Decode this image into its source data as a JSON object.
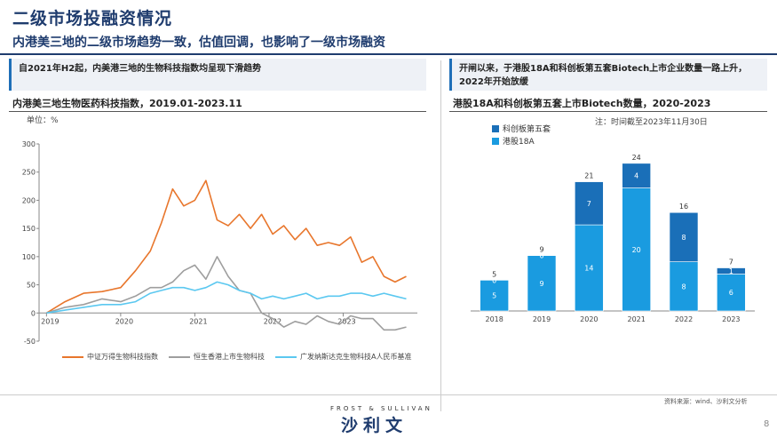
{
  "header": {
    "title": "二级市场投融资情况",
    "subtitle": "内港美三地的二级市场趋势一致，估值回调，也影响了一级市场融资"
  },
  "left_panel": {
    "summary": "自2021年H2起，内美港三地的生物科技指数均呈现下滑趋势",
    "chart_title": "内港美三地生物医药科技指数，2019.01-2023.11",
    "unit": "单位：%"
  },
  "right_panel": {
    "summary": "开闸以来，于港股18A和科创板第五套Biotech上市企业数量一路上升，2022年开始放缓",
    "chart_title": "港股18A和科创板第五套上市Biotech数量，2020-2023",
    "note": "注：时间截至2023年11月30日"
  },
  "footer": {
    "source": "资料来源：wind、沙利文分析",
    "brand_top": "FROST & SULLIVAN",
    "brand": "沙利文",
    "page": "8"
  },
  "colors": {
    "orange": "#e8762c",
    "gray": "#9e9e9e",
    "lightblue": "#5bc8f0",
    "dark_blue": "#1a6fb8",
    "bright_blue": "#1a9be0",
    "accent": "#1f3c6e"
  },
  "chart_data": [
    {
      "type": "line",
      "title": "内港美三地生物医药科技指数，2019.01-2023.11",
      "ylabel": "单位：%",
      "ylim": [
        -50,
        300
      ],
      "yticks": [
        "-50",
        "0",
        "50",
        "100",
        "150",
        "200",
        "250",
        "300"
      ],
      "xticks": [
        "2019",
        "2020",
        "2021",
        "2022",
        "2023"
      ],
      "x": [
        2019.0,
        2019.25,
        2019.5,
        2019.75,
        2020.0,
        2020.2,
        2020.4,
        2020.55,
        2020.7,
        2020.85,
        2021.0,
        2021.15,
        2021.3,
        2021.45,
        2021.6,
        2021.75,
        2021.9,
        2022.05,
        2022.2,
        2022.35,
        2022.5,
        2022.65,
        2022.8,
        2022.95,
        2023.1,
        2023.25,
        2023.4,
        2023.55,
        2023.7,
        2023.85
      ],
      "series": [
        {
          "name": "中证万得生物科技指数",
          "color": "#e8762c",
          "values": [
            0,
            20,
            35,
            38,
            45,
            75,
            110,
            160,
            220,
            190,
            200,
            235,
            165,
            155,
            175,
            150,
            175,
            140,
            155,
            130,
            150,
            120,
            125,
            120,
            135,
            90,
            100,
            65,
            55,
            65
          ]
        },
        {
          "name": "恒生香港上市生物科技",
          "color": "#9e9e9e",
          "values": [
            0,
            10,
            15,
            25,
            20,
            30,
            45,
            45,
            55,
            75,
            85,
            60,
            100,
            65,
            40,
            35,
            0,
            -10,
            -25,
            -15,
            -20,
            -5,
            -15,
            -20,
            -5,
            -10,
            -10,
            -30,
            -30,
            -25
          ]
        },
        {
          "name": "广发纳斯达克生物科技A人民币基准",
          "color": "#5bc8f0",
          "values": [
            0,
            5,
            10,
            15,
            15,
            20,
            35,
            40,
            45,
            45,
            40,
            45,
            55,
            50,
            40,
            35,
            25,
            30,
            25,
            30,
            35,
            25,
            30,
            30,
            35,
            35,
            30,
            35,
            30,
            25
          ]
        }
      ]
    },
    {
      "type": "bar",
      "stacked": true,
      "title": "港股18A和科创板第五套上市Biotech数量，2020-2023",
      "categories": [
        "2018",
        "2019",
        "2020",
        "2021",
        "2022",
        "2023"
      ],
      "series": [
        {
          "name": "港股18A",
          "color": "#1a9be0",
          "values": [
            5,
            9,
            14,
            20,
            8,
            6
          ]
        },
        {
          "name": "科创板第五套",
          "color": "#1a6fb8",
          "values": [
            0,
            0,
            7,
            4,
            8,
            1
          ]
        }
      ],
      "totals": [
        "5",
        "9",
        "21",
        "24",
        "16",
        "7"
      ],
      "ylim": [
        0,
        26
      ]
    }
  ]
}
